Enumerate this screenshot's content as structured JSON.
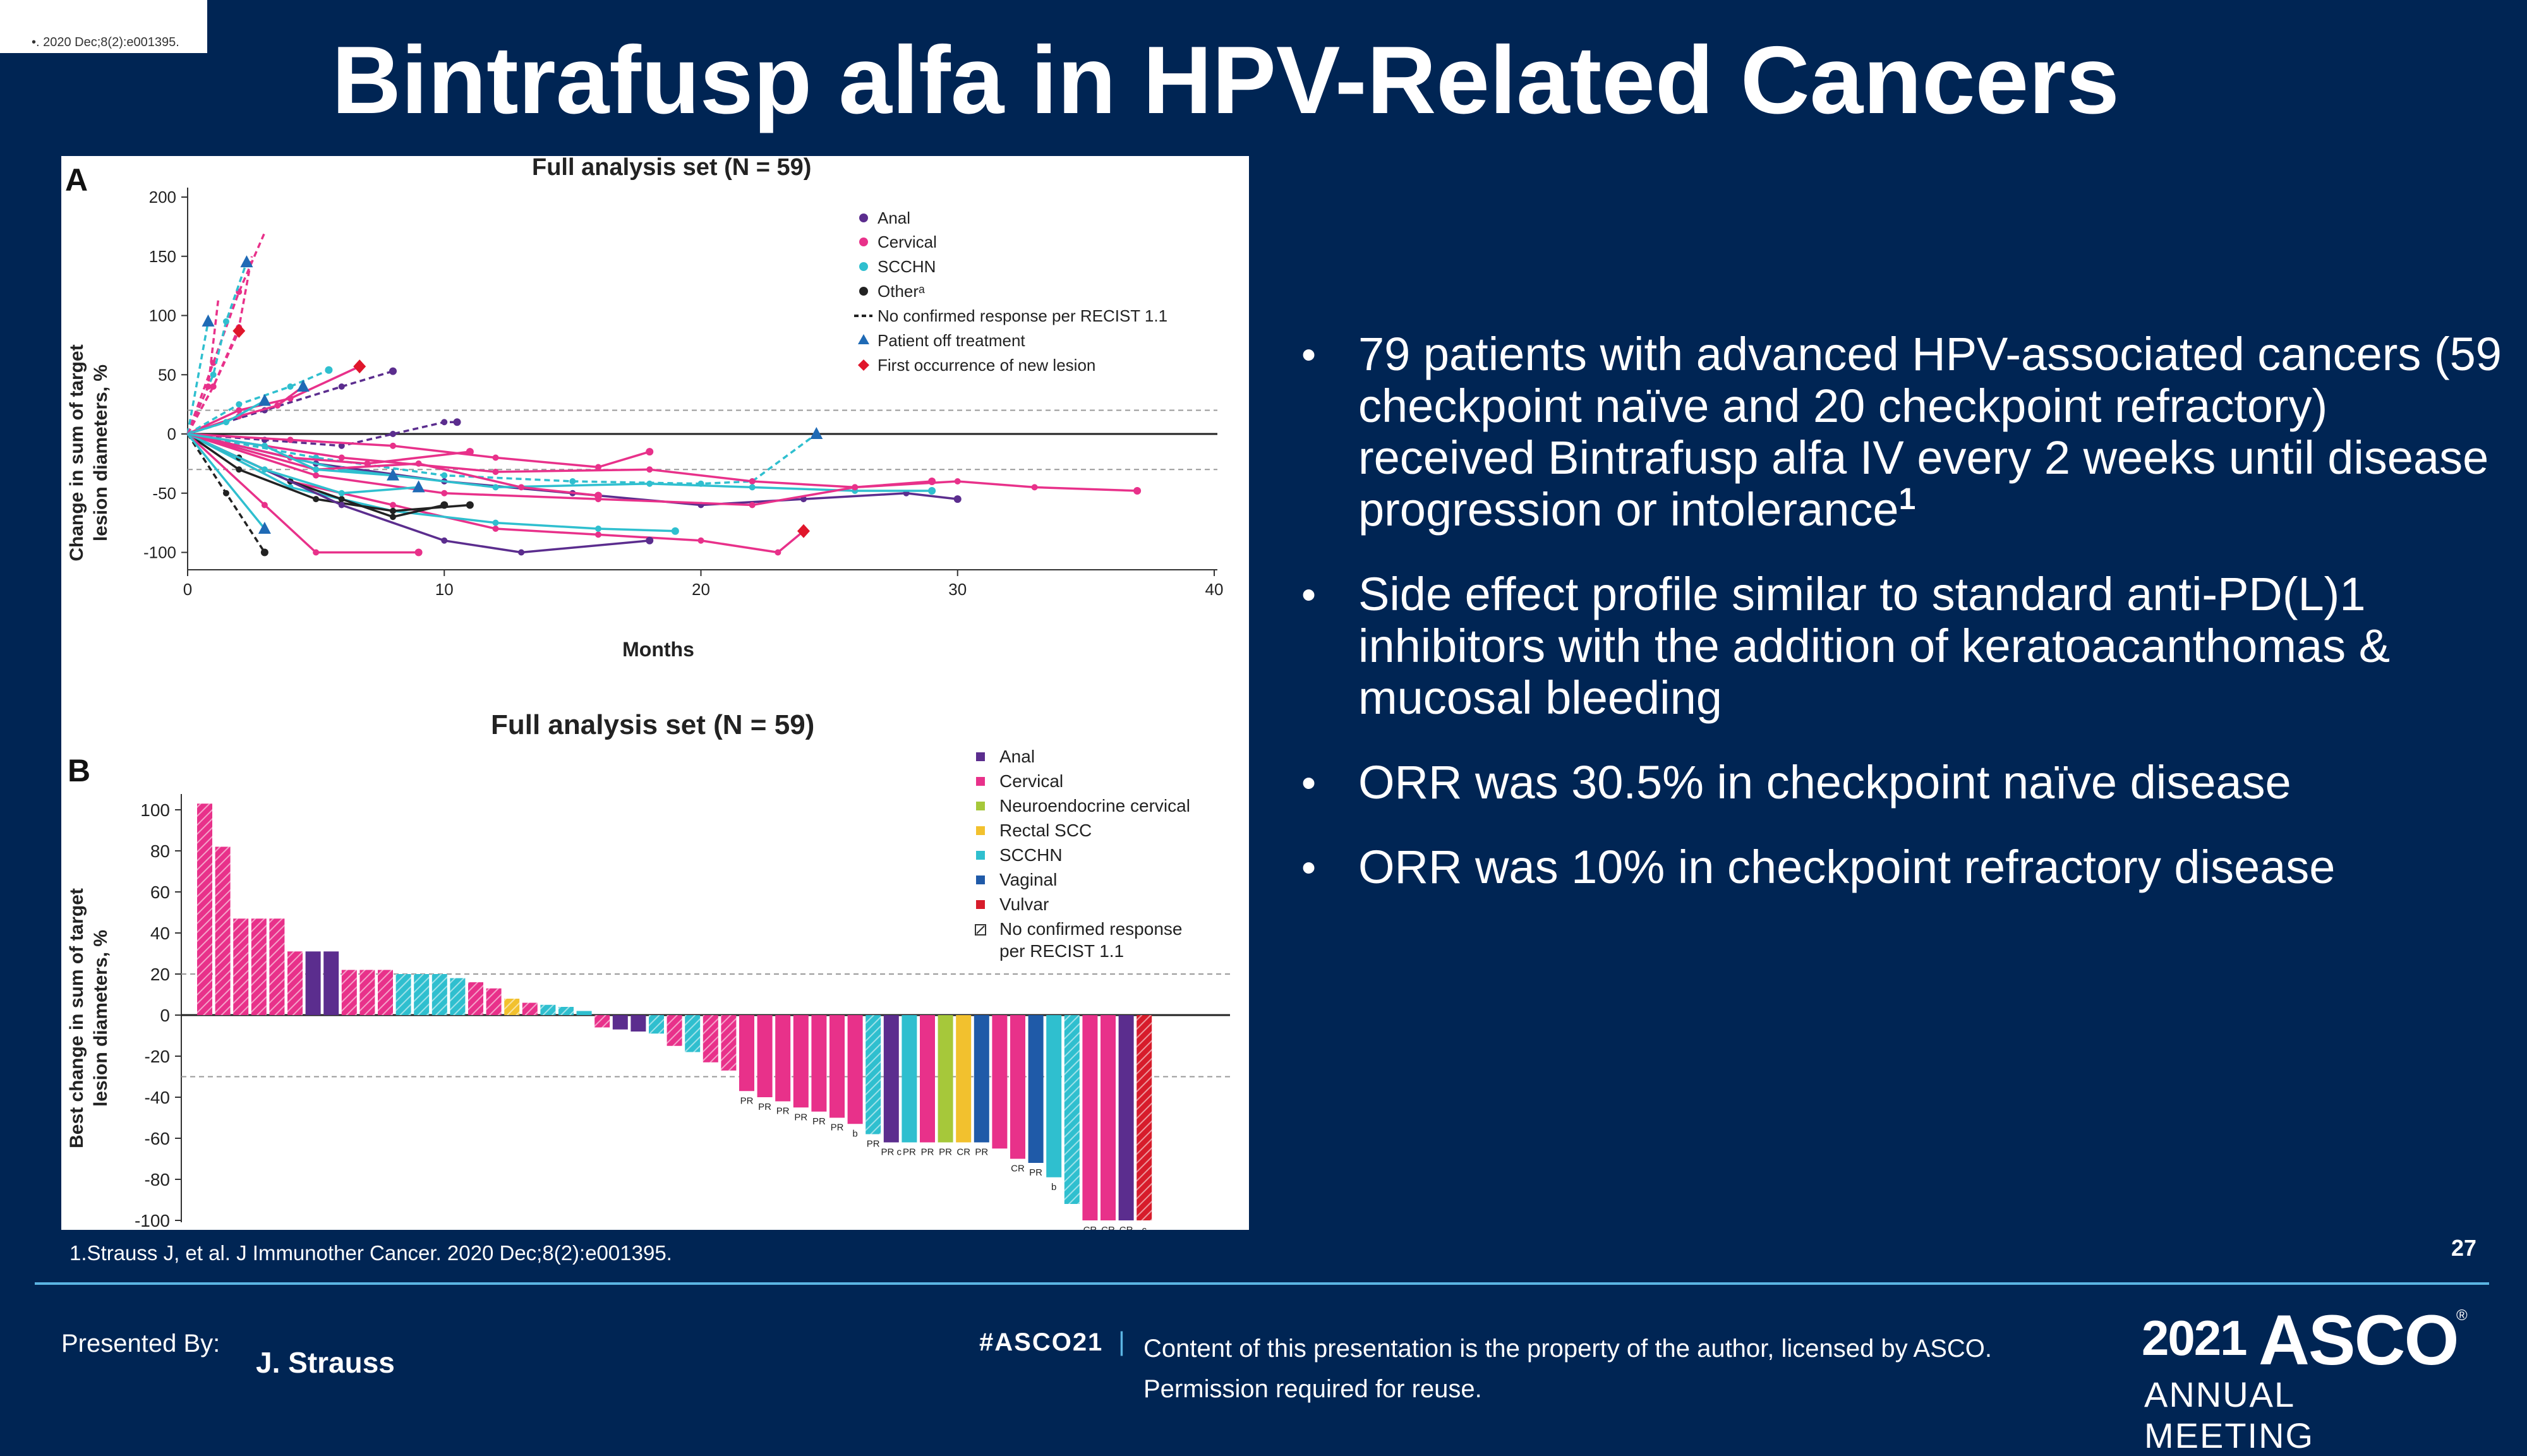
{
  "crop_snippet": "•. 2020 Dec;8(2):e001395.",
  "title": "Bintrafusp alfa in HPV-Related Cancers",
  "figure": {
    "panel_a": {
      "letter": "A",
      "title": "Full analysis set (N = 59)",
      "ylabel_line1": "Change in sum of target",
      "ylabel_line2": "lesion diameters, %",
      "xlabel": "Months",
      "yticks": [
        "200",
        "150",
        "100",
        "50",
        "0",
        "-50",
        "-100"
      ],
      "xticks": [
        "0",
        "10",
        "20",
        "30",
        "40"
      ],
      "legend": {
        "anal": "Anal",
        "cervical": "Cervical",
        "scchn": "SCCHN",
        "other": "Otherᵃ",
        "no_confirmed": "No confirmed response per RECIST 1.1",
        "off_treatment": "Patient off treatment",
        "new_lesion": "First occurrence of new lesion"
      }
    },
    "panel_b": {
      "letter": "B",
      "title": "Full analysis set (N = 59)",
      "ylabel_line1": "Best change in sum of target",
      "ylabel_line2": "lesion diameters, %",
      "yticks": [
        "100",
        "80",
        "60",
        "40",
        "20",
        "0",
        "-20",
        "-40",
        "-60",
        "-80",
        "-100"
      ],
      "legend": {
        "anal": "Anal",
        "cervical": "Cervical",
        "neuro": "Neuroendocrine cervical",
        "rectal": "Rectal SCC",
        "scchn": "SCCHN",
        "vaginal": "Vaginal",
        "vulvar": "Vulvar",
        "no_confirmed_1": "No confirmed response",
        "no_confirmed_2": "per RECIST 1.1"
      }
    }
  },
  "colors": {
    "anal": "#5b2d8e",
    "cervical": "#e8318a",
    "scchn": "#2fbfcf",
    "other": "#222222",
    "neuro": "#a6c83a",
    "rectal": "#f2c12e",
    "vaginal": "#1f5aa8",
    "vulvar": "#d71c2b",
    "triangle": "#1f6ab5",
    "diamond": "#e0162b"
  },
  "bar_chart_data": {
    "type": "bar",
    "values": [
      103,
      82,
      47,
      47,
      47,
      31,
      31,
      31,
      22,
      22,
      22,
      20,
      20,
      20,
      18,
      16,
      13,
      8,
      6,
      5,
      4,
      2,
      -6,
      -7,
      -8,
      -9,
      -15,
      -18,
      -23,
      -27,
      -37,
      -40,
      -42,
      -45,
      -47,
      -50,
      -53,
      -58,
      -62,
      -62,
      -62,
      -62,
      -62,
      -62,
      -65,
      -70,
      -72,
      -79,
      -92,
      -100,
      -100,
      -100,
      -100
    ],
    "types": [
      "cervical",
      "cervical",
      "cervical",
      "cervical",
      "cervical",
      "cervical",
      "anal",
      "anal",
      "cervical",
      "cervical",
      "cervical",
      "scchn",
      "scchn",
      "scchn",
      "scchn",
      "cervical",
      "cervical",
      "rectal",
      "cervical",
      "scchn",
      "scchn",
      "scchn",
      "cervical",
      "anal",
      "anal",
      "scchn",
      "cervical",
      "scchn",
      "cervical",
      "cervical",
      "cervical",
      "cervical",
      "cervical",
      "cervical",
      "cervical",
      "cervical",
      "cervical",
      "scchn",
      "anal",
      "scchn",
      "cervical",
      "neuro",
      "rectal",
      "vaginal",
      "cervical",
      "cervical",
      "vaginal",
      "scchn",
      "scchn",
      "cervical",
      "cervical",
      "anal",
      "vulvar"
    ],
    "hatched": [
      true,
      true,
      true,
      true,
      true,
      true,
      false,
      false,
      true,
      true,
      true,
      true,
      true,
      true,
      true,
      true,
      true,
      true,
      true,
      true,
      true,
      false,
      true,
      false,
      false,
      true,
      true,
      true,
      true,
      true,
      false,
      false,
      false,
      false,
      false,
      false,
      false,
      true,
      false,
      false,
      false,
      false,
      false,
      false,
      false,
      false,
      false,
      false,
      true,
      false,
      false,
      false,
      true
    ],
    "bar_labels": [
      "",
      "",
      "",
      "",
      "",
      "",
      "",
      "",
      "",
      "",
      "",
      "",
      "",
      "",
      "",
      "",
      "",
      "",
      "",
      "",
      "",
      "",
      "",
      "",
      "",
      "",
      "",
      "",
      "",
      "",
      "PR",
      "PR",
      "PR",
      "PR",
      "PR",
      "PR",
      "b",
      "PR",
      "PR c",
      "PR",
      "PR",
      "PR",
      "CR",
      "PR",
      "",
      "CR",
      "PR",
      "b",
      "",
      "CR",
      "CR",
      "CR",
      "c"
    ],
    "ylim": [
      -100,
      100
    ],
    "reference_lines": [
      20,
      -30
    ]
  },
  "bullets": [
    "79 patients with advanced HPV-associated cancers (59 checkpoint naïve and 20 checkpoint refractory) received Bintrafusp alfa IV every 2 weeks until disease progression or intolerance",
    "Side effect profile similar to standard anti-PD(L)1 inhibitors with the addition of keratoacanthomas & mucosal bleeding",
    "ORR was 30.5% in checkpoint naïve disease",
    "ORR was 10% in checkpoint refractory disease"
  ],
  "bullet_sup": "1",
  "reference": "1.Strauss J, et al. J Immunother Cancer. 2020 Dec;8(2):e001395.",
  "page_number": "27",
  "footer": {
    "presented_by": "Presented By:",
    "presenter": "J. Strauss",
    "hashtag": "#ASCO21",
    "separator": "|",
    "copyright": "Content of this presentation is the property of the author, licensed by ASCO. Permission required for reuse.",
    "logo_year": "2021",
    "logo_name": "ASCO",
    "logo_reg": "®",
    "logo_sub": "ANNUAL MEETING"
  }
}
